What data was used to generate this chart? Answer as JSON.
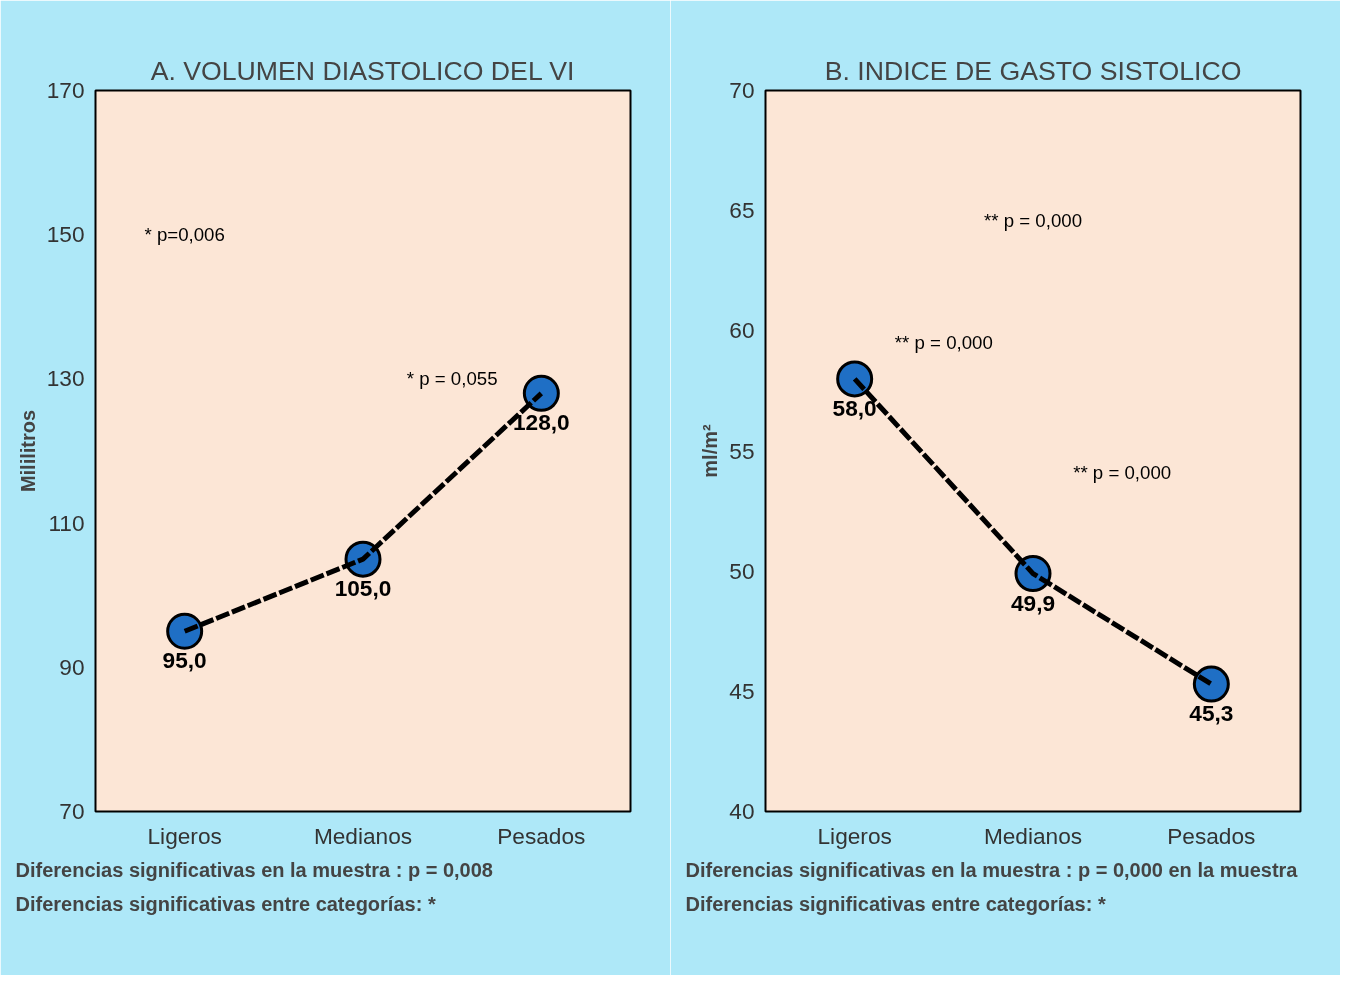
{
  "chart_data": [
    {
      "type": "line",
      "title": "A. VOLUMEN DIASTOLICO DEL VI",
      "ylabel": "Mililitros",
      "categories": [
        "Ligeros",
        "Medianos",
        "Pesados"
      ],
      "series": [
        {
          "color": "#000000",
          "colors": [
            "#1f6fc5",
            "#1f6fc5",
            "#1f6fc5"
          ],
          "values": [
            95.0,
            105.0,
            128.0
          ],
          "value_labels": [
            "95,0",
            "105,0",
            "128,0"
          ]
        }
      ],
      "ylim": [
        70,
        170
      ],
      "yticks": [
        70,
        90,
        110,
        130,
        150,
        170
      ],
      "grid": false,
      "marker": "circle",
      "line_style": "dashed",
      "annotations": [
        "* p=0,006",
        "* p = 0,055",
        "Diferencias significativas en la muestra : p = 0,008",
        "Diferencias significativas entre categorías: *"
      ]
    },
    {
      "type": "line",
      "title": "B. INDICE DE GASTO SISTOLICO",
      "ylabel": "ml/m²",
      "categories": [
        "Ligeros",
        "Medianos",
        "Pesados"
      ],
      "series": [
        {
          "color": "#000000",
          "colors": [
            "#1f6fc5",
            "#1f6fc5",
            "#1f6fc5"
          ],
          "values": [
            58.0,
            49.9,
            45.3
          ],
          "value_labels": [
            "58,0",
            "49,9",
            "45,3"
          ]
        }
      ],
      "ylim": [
        40,
        70
      ],
      "yticks": [
        40,
        45,
        50,
        55,
        60,
        65,
        70
      ],
      "grid": false,
      "marker": "circle",
      "line_style": "dashed",
      "annotations": [
        "** p = 0,000",
        "** p = 0,000",
        "** p = 0,000",
        "Diferencias significativas en la muestra : p = 0,000 en la muestra",
        "Diferencias significativas entre categorías: *"
      ]
    }
  ]
}
